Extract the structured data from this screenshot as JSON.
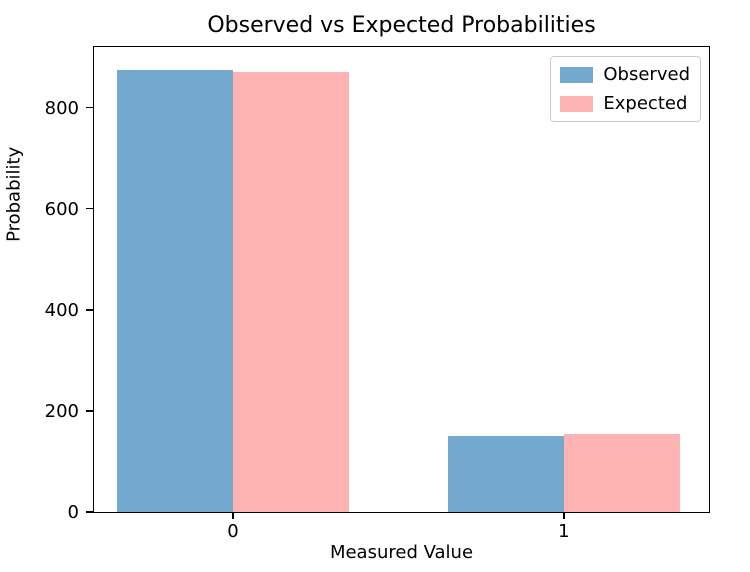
{
  "figure": {
    "background_color": "#ffffff",
    "text_color": "#000000"
  },
  "chart_data": {
    "type": "bar",
    "title": "Observed vs Expected Probabilities",
    "xlabel": "Measured Value",
    "ylabel": "Probability",
    "categories": [
      "0",
      "1"
    ],
    "series": [
      {
        "name": "Observed",
        "color": "#74a9cf",
        "values": [
          874,
          150
        ]
      },
      {
        "name": "Expected",
        "color": "#ffb2b2",
        "values": [
          870,
          154
        ]
      }
    ],
    "ylim": [
      0,
      920
    ],
    "yticks": [
      0,
      200,
      400,
      600,
      800
    ],
    "grid": false,
    "legend_position": "upper right",
    "bar_width": 0.35
  }
}
